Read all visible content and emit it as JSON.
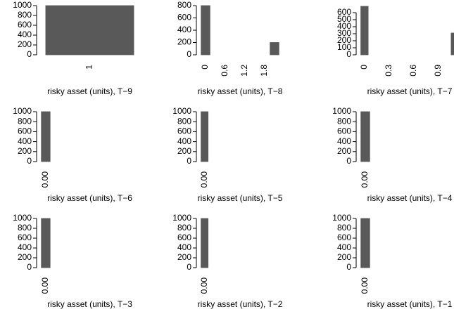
{
  "chart_data": [
    {
      "type": "bar",
      "x_label": "risky asset (units), T−9",
      "categories": [
        "1"
      ],
      "values": [
        1000
      ],
      "color": "#595959",
      "ylim": [
        0,
        1000
      ],
      "yticks": [
        0,
        200,
        400,
        600,
        800,
        1000
      ]
    },
    {
      "type": "bar",
      "x_label": "risky asset (units), T−8",
      "categories": [
        "0",
        null,
        "0.6",
        null,
        "1.2",
        null,
        "1.8",
        null
      ],
      "values": [
        800,
        0,
        0,
        0,
        0,
        0,
        0,
        200
      ],
      "color": "#595959",
      "ylim": [
        0,
        800
      ],
      "yticks": [
        0,
        200,
        400,
        600,
        800
      ]
    },
    {
      "type": "bar",
      "x_label": "risky asset (units), T−7",
      "categories": [
        "0",
        null,
        null,
        "0.3",
        null,
        null,
        "0.6",
        null,
        null,
        "0.9",
        null,
        null
      ],
      "values": [
        690,
        0,
        0,
        0,
        0,
        0,
        0,
        0,
        0,
        0,
        0,
        310
      ],
      "color": "#595959",
      "ylim": [
        0,
        700
      ],
      "yticks": [
        0,
        100,
        200,
        300,
        400,
        500,
        600
      ]
    },
    {
      "type": "bar",
      "x_label": "risky asset (units), T−6",
      "categories": [
        "0.00",
        null,
        null,
        null,
        null,
        null,
        null,
        null,
        null,
        null
      ],
      "values": [
        1000,
        0,
        0,
        0,
        0,
        0,
        0,
        0,
        0,
        0
      ],
      "color": "#595959",
      "ylim": [
        0,
        1000
      ],
      "yticks": [
        0,
        200,
        400,
        600,
        800,
        1000
      ]
    },
    {
      "type": "bar",
      "x_label": "risky asset (units), T−5",
      "categories": [
        "0.00",
        null,
        null,
        null,
        null,
        null,
        null,
        null,
        null,
        null
      ],
      "values": [
        1000,
        0,
        0,
        0,
        0,
        0,
        0,
        0,
        0,
        0
      ],
      "color": "#595959",
      "ylim": [
        0,
        1000
      ],
      "yticks": [
        0,
        200,
        400,
        600,
        800,
        1000
      ]
    },
    {
      "type": "bar",
      "x_label": "risky asset (units), T−4",
      "categories": [
        "0.00",
        null,
        null,
        null,
        null,
        null,
        null,
        null,
        null,
        null
      ],
      "values": [
        1000,
        0,
        0,
        0,
        0,
        0,
        0,
        0,
        0,
        0
      ],
      "color": "#595959",
      "ylim": [
        0,
        1000
      ],
      "yticks": [
        0,
        200,
        400,
        600,
        800,
        1000
      ]
    },
    {
      "type": "bar",
      "x_label": "risky asset (units), T−3",
      "categories": [
        "0.00",
        null,
        null,
        null,
        null,
        null,
        null,
        null,
        null,
        null
      ],
      "values": [
        1000,
        0,
        0,
        0,
        0,
        0,
        0,
        0,
        0,
        0
      ],
      "color": "#595959",
      "ylim": [
        0,
        1000
      ],
      "yticks": [
        0,
        200,
        400,
        600,
        800,
        1000
      ]
    },
    {
      "type": "bar",
      "x_label": "risky asset (units), T−2",
      "categories": [
        "0.00",
        null,
        null,
        null,
        null,
        null,
        null,
        null,
        null,
        null
      ],
      "values": [
        1000,
        0,
        0,
        0,
        0,
        0,
        0,
        0,
        0,
        0
      ],
      "color": "#595959",
      "ylim": [
        0,
        1000
      ],
      "yticks": [
        0,
        200,
        400,
        600,
        800,
        1000
      ]
    },
    {
      "type": "bar",
      "x_label": "risky asset (units), T−1",
      "categories": [
        "0.00",
        null,
        null,
        null,
        null,
        null,
        null,
        null,
        null,
        null
      ],
      "values": [
        1000,
        0,
        0,
        0,
        0,
        0,
        0,
        0,
        0,
        0
      ],
      "color": "#595959",
      "ylim": [
        0,
        1000
      ],
      "yticks": [
        0,
        200,
        400,
        600,
        800,
        1000
      ]
    }
  ]
}
